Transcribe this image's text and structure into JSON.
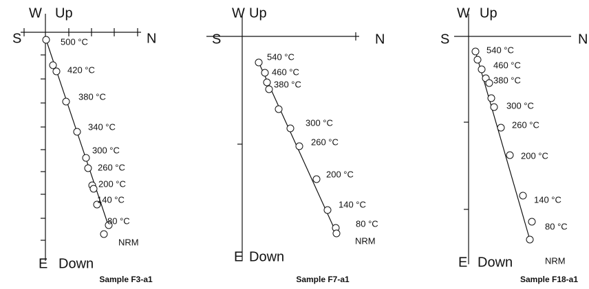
{
  "panels": [
    {
      "axis_labels": {
        "west": "W",
        "up": "Up",
        "south": "S",
        "north": "N",
        "east": "E",
        "down": "Down"
      },
      "temperature_labels": [
        "500 °C",
        "420 °C",
        "380 °C",
        "340 °C",
        "300 °C",
        "260 °C",
        "200 °C",
        "140 °C",
        "80 °C"
      ],
      "nrm": "NRM",
      "caption": "Sample F3-a1"
    },
    {
      "axis_labels": {
        "west": "W",
        "up": "Up",
        "south": "S",
        "north": "N",
        "east": "E",
        "down": "Down"
      },
      "temperature_labels": [
        "540 °C",
        "460 °C",
        "380 °C",
        "300 °C",
        "260 °C",
        "200 °C",
        "140 °C",
        "80 °C"
      ],
      "nrm": "NRM",
      "caption": "Sample F7-a1"
    },
    {
      "axis_labels": {
        "west": "W",
        "up": "Up",
        "south": "S",
        "north": "N",
        "east": "E",
        "down": "Down"
      },
      "temperature_labels": [
        "540 °C",
        "460 °C",
        "380 °C",
        "300 °C",
        "260 °C",
        "200 °C",
        "140 °C",
        "80 °C"
      ],
      "nrm": "NRM",
      "caption": "Sample F18-a1"
    }
  ]
}
